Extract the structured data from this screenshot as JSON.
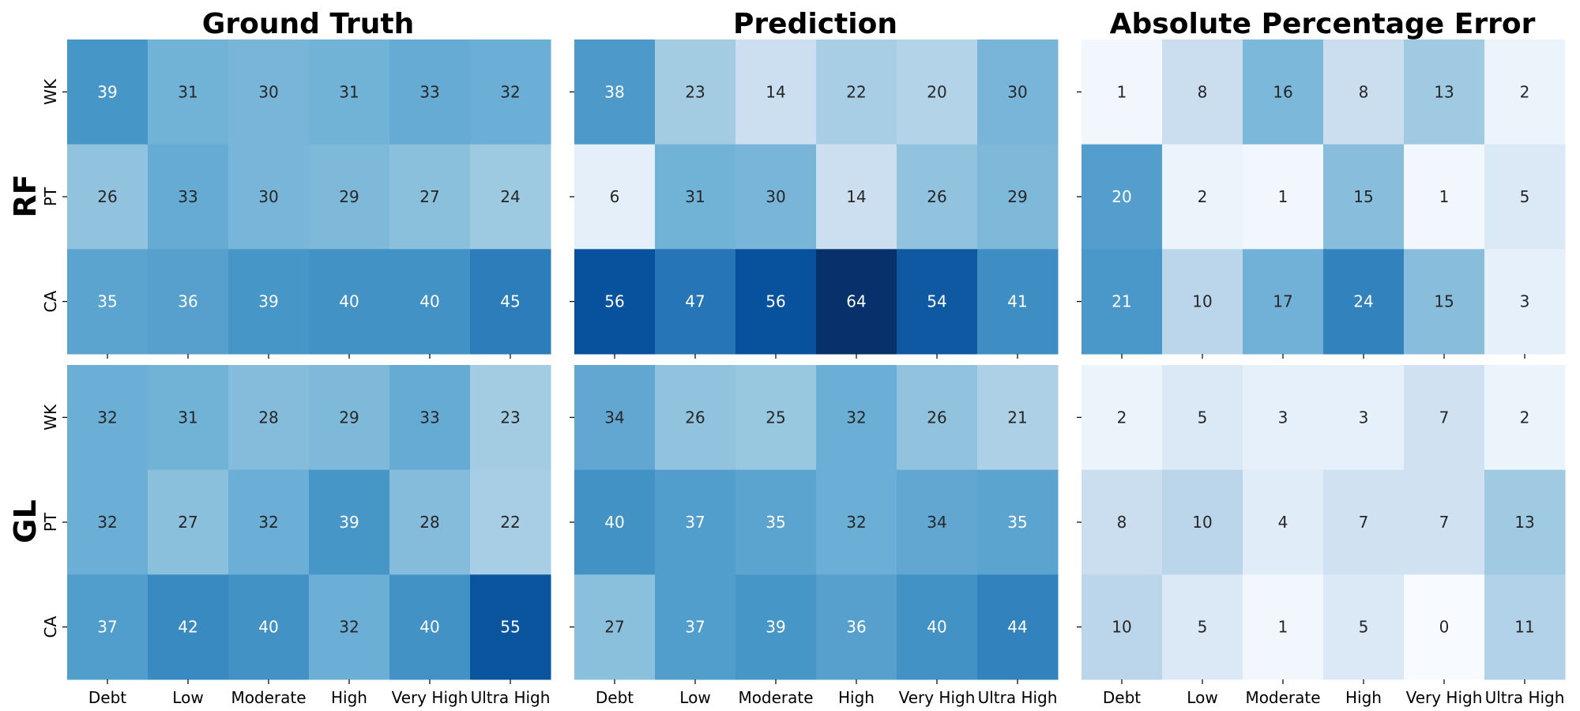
{
  "colormap": "Blues",
  "chart_data": {
    "type": "heatmap",
    "x_categories": [
      "Debt",
      "Low",
      "Moderate",
      "High",
      "Very High",
      "Ultra High"
    ],
    "y_categories": [
      "WK",
      "PT",
      "CA"
    ],
    "column_titles": [
      "Ground Truth",
      "Prediction",
      "Absolute Percentage Error"
    ],
    "row_titles": [
      "RF",
      "GL"
    ],
    "panels": [
      {
        "row": "RF",
        "column": "Ground Truth",
        "vmin": 0,
        "vmax": 64,
        "values": [
          [
            39,
            31,
            30,
            31,
            33,
            32
          ],
          [
            26,
            33,
            30,
            29,
            27,
            24
          ],
          [
            35,
            36,
            39,
            40,
            40,
            45
          ]
        ]
      },
      {
        "row": "RF",
        "column": "Prediction",
        "vmin": 0,
        "vmax": 64,
        "values": [
          [
            38,
            23,
            14,
            22,
            20,
            30
          ],
          [
            6,
            31,
            30,
            14,
            26,
            29
          ],
          [
            56,
            47,
            56,
            64,
            54,
            41
          ]
        ]
      },
      {
        "row": "RF",
        "column": "Absolute Percentage Error",
        "vmin": 0,
        "vmax": 35,
        "values": [
          [
            1,
            8,
            16,
            8,
            13,
            2
          ],
          [
            20,
            2,
            1,
            15,
            1,
            5
          ],
          [
            21,
            10,
            17,
            24,
            15,
            3
          ]
        ]
      },
      {
        "row": "GL",
        "column": "Ground Truth",
        "vmin": 0,
        "vmax": 64,
        "values": [
          [
            32,
            31,
            28,
            29,
            33,
            23
          ],
          [
            32,
            27,
            32,
            39,
            28,
            22
          ],
          [
            37,
            42,
            40,
            32,
            40,
            55
          ]
        ]
      },
      {
        "row": "GL",
        "column": "Prediction",
        "vmin": 0,
        "vmax": 64,
        "values": [
          [
            34,
            26,
            25,
            32,
            26,
            21
          ],
          [
            40,
            37,
            35,
            32,
            34,
            35
          ],
          [
            27,
            37,
            39,
            36,
            40,
            44
          ]
        ]
      },
      {
        "row": "GL",
        "column": "Absolute Percentage Error",
        "vmin": 0,
        "vmax": 35,
        "values": [
          [
            2,
            5,
            3,
            3,
            7,
            2
          ],
          [
            8,
            10,
            4,
            7,
            7,
            13
          ],
          [
            10,
            5,
            1,
            5,
            0,
            11
          ]
        ]
      }
    ],
    "grid": false,
    "legend": "none"
  }
}
